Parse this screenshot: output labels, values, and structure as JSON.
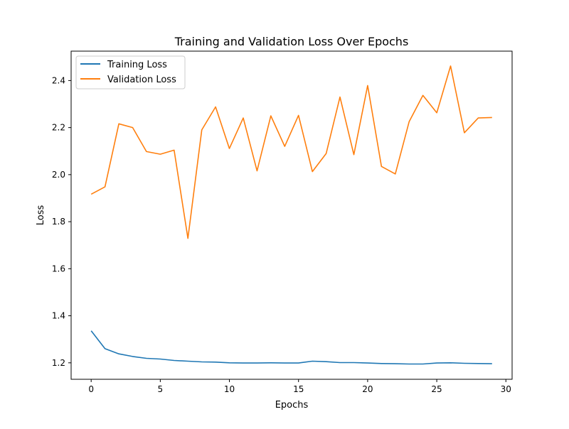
{
  "chart_data": {
    "type": "line",
    "title": "Training and Validation Loss Over Epochs",
    "xlabel": "Epochs",
    "ylabel": "Loss",
    "xlim": [
      -1.45,
      30.45
    ],
    "ylim": [
      1.13,
      2.525
    ],
    "xticks": [
      0,
      5,
      10,
      15,
      20,
      25,
      30
    ],
    "yticks": [
      1.2,
      1.4,
      1.6,
      1.8,
      2.0,
      2.2,
      2.4
    ],
    "ytick_labels": [
      "1.2",
      "1.4",
      "1.6",
      "1.8",
      "2.0",
      "2.2",
      "2.4"
    ],
    "grid": false,
    "legend": "top-left",
    "x": [
      0,
      1,
      2,
      3,
      4,
      5,
      6,
      7,
      8,
      9,
      10,
      11,
      12,
      13,
      14,
      15,
      16,
      17,
      18,
      19,
      20,
      21,
      22,
      23,
      24,
      25,
      26,
      27,
      28,
      29
    ],
    "series": [
      {
        "name": "Training Loss",
        "color": "#1f77b4",
        "values": [
          1.336,
          1.26,
          1.238,
          1.227,
          1.219,
          1.216,
          1.21,
          1.207,
          1.204,
          1.203,
          1.2,
          1.199,
          1.199,
          1.2,
          1.199,
          1.199,
          1.207,
          1.205,
          1.201,
          1.201,
          1.199,
          1.197,
          1.196,
          1.195,
          1.195,
          1.199,
          1.2,
          1.198,
          1.197,
          1.196
        ]
      },
      {
        "name": "Validation Loss",
        "color": "#ff7f0e",
        "values": [
          1.917,
          1.948,
          2.216,
          2.2,
          2.098,
          2.087,
          2.104,
          1.729,
          2.19,
          2.288,
          2.111,
          2.241,
          2.016,
          2.25,
          2.12,
          2.252,
          2.013,
          2.09,
          2.33,
          2.085,
          2.379,
          2.035,
          2.003,
          2.225,
          2.337,
          2.263,
          2.462,
          2.178,
          2.241,
          2.243
        ]
      }
    ]
  }
}
